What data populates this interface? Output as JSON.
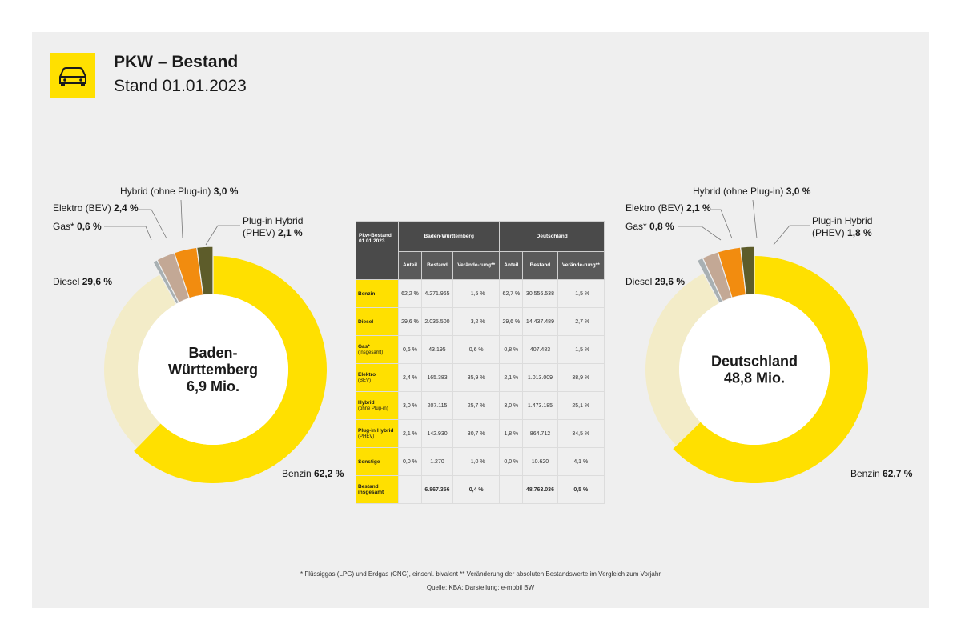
{
  "header": {
    "title": "PKW – Bestand",
    "subtitle": "Stand 01.01.2023"
  },
  "icon": "car-icon",
  "colors": {
    "benzin": "#ffe000",
    "diesel": "#f3ecc8",
    "gas": "#a8b0b3",
    "elektro": "#c3a895",
    "hybrid": "#f28c0f",
    "phev": "#5d5c2a",
    "dark": "#4a4a4a"
  },
  "chart_data": [
    {
      "type": "pie",
      "center_label": [
        "Baden-",
        "Württemberg",
        "6,9 Mio."
      ],
      "slices": [
        {
          "label": "Benzin",
          "value": 62.2,
          "value_text": "62,2 %"
        },
        {
          "label": "Diesel",
          "value": 29.6,
          "value_text": "29,6 %"
        },
        {
          "label": "Gas*",
          "value": 0.6,
          "value_text": "0,6 %"
        },
        {
          "label": "Elektro (BEV)",
          "value": 2.4,
          "value_text": "2,4 %"
        },
        {
          "label": "Hybrid (ohne Plug-in)",
          "value": 3.0,
          "value_text": "3,0 %"
        },
        {
          "label": "Plug-in Hybrid (PHEV)",
          "value": 2.1,
          "value_text": "2,1 %"
        }
      ]
    },
    {
      "type": "pie",
      "center_label": [
        "Deutschland",
        "48,8 Mio."
      ],
      "slices": [
        {
          "label": "Benzin",
          "value": 62.7,
          "value_text": "62,7 %"
        },
        {
          "label": "Diesel",
          "value": 29.6,
          "value_text": "29,6 %"
        },
        {
          "label": "Gas*",
          "value": 0.8,
          "value_text": "0,8 %"
        },
        {
          "label": "Elektro (BEV)",
          "value": 2.1,
          "value_text": "2,1 %"
        },
        {
          "label": "Hybrid (ohne Plug-in)",
          "value": 3.0,
          "value_text": "3,0 %"
        },
        {
          "label": "Plug-in Hybrid (PHEV)",
          "value": 1.8,
          "value_text": "1,8 %"
        }
      ]
    },
    {
      "type": "table",
      "corner": "Pkw-Bestand 01.01.2023",
      "groups": [
        "Baden-Württemberg",
        "Deutschland"
      ],
      "columns": [
        "Anteil",
        "Bestand",
        "Verände-rung**",
        "Anteil",
        "Bestand",
        "Verände-rung**"
      ],
      "rows": [
        {
          "label": "Benzin",
          "sub": "",
          "cells": [
            "62,2 %",
            "4.271.965",
            "–1,5 %",
            "62,7 %",
            "30.556.538",
            "–1,5 %"
          ]
        },
        {
          "label": "Diesel",
          "sub": "",
          "cells": [
            "29,6 %",
            "2.035.500",
            "–3,2 %",
            "29,6 %",
            "14.437.489",
            "–2,7 %"
          ]
        },
        {
          "label": "Gas*",
          "sub": "(insgesamt)",
          "cells": [
            "0,6 %",
            "43.195",
            "0,6 %",
            "0,8 %",
            "407.483",
            "–1,5 %"
          ]
        },
        {
          "label": "Elektro",
          "sub": "(BEV)",
          "cells": [
            "2,4 %",
            "165.383",
            "35,9 %",
            "2,1 %",
            "1.013.009",
            "38,9 %"
          ]
        },
        {
          "label": "Hybrid",
          "sub": "(ohne Plug-in)",
          "cells": [
            "3,0 %",
            "207.115",
            "25,7 %",
            "3,0 %",
            "1.473.185",
            "25,1 %"
          ]
        },
        {
          "label": "Plug-in Hybrid",
          "sub": "(PHEV)",
          "cells": [
            "2,1 %",
            "142.930",
            "30,7 %",
            "1,8 %",
            "864.712",
            "34,5 %"
          ]
        },
        {
          "label": "Sonstige",
          "sub": "",
          "cells": [
            "0,0 %",
            "1.270",
            "–1,0 %",
            "0,0 %",
            "10.620",
            "4,1 %"
          ]
        },
        {
          "label": "Bestand insgesamt",
          "sub": "",
          "cells": [
            "",
            "6.867.356",
            "0,4 %",
            "",
            "48.763.036",
            "0,5 %"
          ]
        }
      ]
    }
  ],
  "footnotes": {
    "line1": "* Flüssiggas (LPG) und Erdgas (CNG), einschl. bivalent ** Veränderung der absoluten Bestandswerte im Vergleich zum Vorjahr",
    "line2": "Quelle: KBA; Darstellung: e-mobil BW"
  }
}
